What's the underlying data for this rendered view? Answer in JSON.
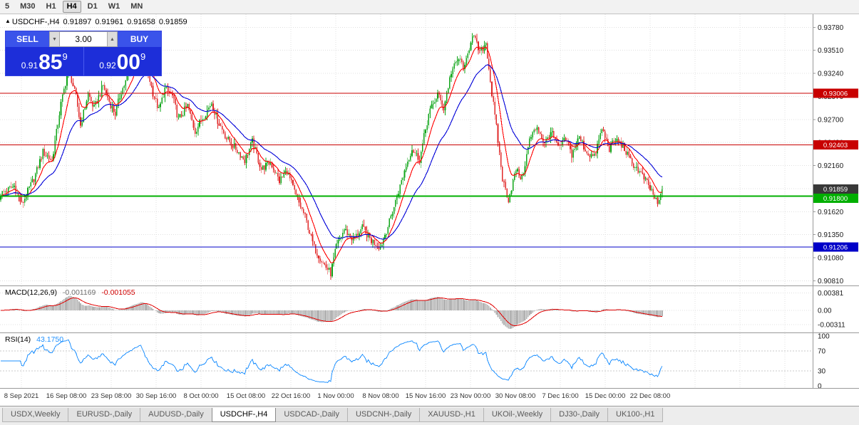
{
  "toolbar": {
    "timeframes": [
      "5",
      "M30",
      "H1",
      "H4",
      "D1",
      "W1",
      "MN"
    ],
    "active": "H4"
  },
  "chart_header": {
    "collapse_icon": "▲",
    "symbol_tf": "USDCHF-,H4",
    "open": "0.91897",
    "high": "0.91961",
    "low": "0.91658",
    "close": "0.91859"
  },
  "trade_panel": {
    "sell_label": "SELL",
    "buy_label": "BUY",
    "volume": "3.00",
    "spinner_down": "▼",
    "spinner_up": "▲",
    "sell_price": {
      "prefix": "0.91",
      "big": "85",
      "pip": "9"
    },
    "buy_price": {
      "prefix": "0.92",
      "big": "00",
      "pip": "9"
    }
  },
  "indicator_labels": {
    "macd_name": "MACD(12,26,9)",
    "macd_main": "-0.001169",
    "macd_signal": "-0.001055",
    "rsi_name": "RSI(14)",
    "rsi_value": "43.1750"
  },
  "tabs": {
    "items": [
      "USDX,Weekly",
      "EURUSD-,Daily",
      "AUDUSD-,Daily",
      "USDCHF-,H4",
      "USDCAD-,Daily",
      "USDCNH-,Daily",
      "XAUUSD-,H1",
      "UKOil-,Weekly",
      "DJ30-,Daily",
      "UK100-,H1"
    ],
    "active": "USDCHF-,H4"
  },
  "chart_data": {
    "type": "candlestick",
    "symbol": "USDCHF-",
    "timeframe": "H4",
    "ohlc_current": {
      "open": 0.91897,
      "high": 0.91961,
      "low": 0.91658,
      "close": 0.91859
    },
    "y_range": [
      0.9078,
      0.939
    ],
    "y_ticks": [
      0.9081,
      0.9108,
      0.9135,
      0.9162,
      0.9189,
      0.9216,
      0.9243,
      0.927,
      0.9297,
      0.9324,
      0.9351,
      0.9378
    ],
    "x_labels": [
      "8 Sep 2021",
      "16 Sep 08:00",
      "23 Sep 08:00",
      "30 Sep 16:00",
      "8 Oct 00:00",
      "15 Oct 08:00",
      "22 Oct 16:00",
      "1 Nov 00:00",
      "8 Nov 08:00",
      "15 Nov 16:00",
      "23 Nov 00:00",
      "30 Nov 08:00",
      "7 Dec 16:00",
      "15 Dec 00:00",
      "22 Dec 08:00"
    ],
    "candles_total": 440,
    "price_waypoints": [
      [
        0,
        0.9183
      ],
      [
        9,
        0.9192
      ],
      [
        14,
        0.917
      ],
      [
        23,
        0.9205
      ],
      [
        28,
        0.9232
      ],
      [
        34,
        0.9222
      ],
      [
        40,
        0.9288
      ],
      [
        45,
        0.933
      ],
      [
        50,
        0.9296
      ],
      [
        53,
        0.9263
      ],
      [
        58,
        0.93
      ],
      [
        62,
        0.9283
      ],
      [
        68,
        0.931
      ],
      [
        72,
        0.9291
      ],
      [
        76,
        0.9277
      ],
      [
        80,
        0.9303
      ],
      [
        85,
        0.9322
      ],
      [
        90,
        0.935
      ],
      [
        93,
        0.936
      ],
      [
        97,
        0.9331
      ],
      [
        101,
        0.9301
      ],
      [
        105,
        0.9281
      ],
      [
        109,
        0.9306
      ],
      [
        114,
        0.9297
      ],
      [
        118,
        0.927
      ],
      [
        124,
        0.9286
      ],
      [
        129,
        0.9256
      ],
      [
        134,
        0.9272
      ],
      [
        140,
        0.929
      ],
      [
        144,
        0.9269
      ],
      [
        150,
        0.9248
      ],
      [
        156,
        0.9236
      ],
      [
        162,
        0.9222
      ],
      [
        167,
        0.9244
      ],
      [
        173,
        0.9212
      ],
      [
        179,
        0.922
      ],
      [
        185,
        0.9198
      ],
      [
        190,
        0.921
      ],
      [
        196,
        0.918
      ],
      [
        202,
        0.9156
      ],
      [
        208,
        0.912
      ],
      [
        214,
        0.9102
      ],
      [
        219,
        0.909
      ],
      [
        223,
        0.9122
      ],
      [
        228,
        0.9141
      ],
      [
        234,
        0.9129
      ],
      [
        240,
        0.9143
      ],
      [
        246,
        0.9128
      ],
      [
        252,
        0.9121
      ],
      [
        258,
        0.915
      ],
      [
        264,
        0.9186
      ],
      [
        269,
        0.9216
      ],
      [
        273,
        0.9236
      ],
      [
        278,
        0.9223
      ],
      [
        284,
        0.9276
      ],
      [
        290,
        0.93
      ],
      [
        294,
        0.9283
      ],
      [
        299,
        0.9326
      ],
      [
        304,
        0.9341
      ],
      [
        308,
        0.933
      ],
      [
        313,
        0.9371
      ],
      [
        318,
        0.9348
      ],
      [
        322,
        0.936
      ],
      [
        326,
        0.93
      ],
      [
        329,
        0.926
      ],
      [
        333,
        0.92
      ],
      [
        337,
        0.9176
      ],
      [
        342,
        0.9211
      ],
      [
        346,
        0.92
      ],
      [
        351,
        0.9246
      ],
      [
        356,
        0.9262
      ],
      [
        361,
        0.9241
      ],
      [
        365,
        0.9256
      ],
      [
        370,
        0.9236
      ],
      [
        375,
        0.9246
      ],
      [
        379,
        0.9229
      ],
      [
        384,
        0.9249
      ],
      [
        389,
        0.9231
      ],
      [
        394,
        0.9226
      ],
      [
        399,
        0.9259
      ],
      [
        404,
        0.9236
      ],
      [
        408,
        0.9246
      ],
      [
        413,
        0.9239
      ],
      [
        418,
        0.9221
      ],
      [
        422,
        0.9213
      ],
      [
        427,
        0.9201
      ],
      [
        432,
        0.9186
      ],
      [
        436,
        0.917
      ],
      [
        439,
        0.9186
      ]
    ],
    "noise": {
      "close": 0.00045,
      "wick": 0.0006
    },
    "colors": {
      "bull": "#0fa518",
      "bear": "#e02828",
      "grid": "#e0e0e0",
      "axis_border": "#9a9a9a"
    },
    "moving_averages": [
      {
        "period": 10,
        "color": "#ff0000"
      },
      {
        "period": 30,
        "color": "#0000d8"
      }
    ],
    "h_lines": [
      {
        "value": 0.93006,
        "label": "0.93006",
        "color": "#c80000",
        "width": 1
      },
      {
        "value": 0.92403,
        "label": "0.92403",
        "color": "#c80000",
        "width": 1
      },
      {
        "value": 0.918,
        "label": "0.91800",
        "color": "#00af00",
        "width": 2
      },
      {
        "value": 0.91206,
        "label": "0.91206",
        "color": "#0000c8",
        "width": 1
      }
    ],
    "current_price": {
      "value": 0.91859,
      "label": "0.91859",
      "badge_color": "#383838"
    },
    "macd": {
      "fast": 12,
      "slow": 26,
      "signal": 9,
      "main_value": -0.001169,
      "signal_value": -0.001055,
      "y_range": [
        -0.0045,
        0.0048
      ],
      "y_ticks": [
        {
          "label": "0.00381",
          "value": 0.00381
        },
        {
          "label": "0.00",
          "value": 0
        },
        {
          "label": "-0.00311",
          "value": -0.00311
        }
      ],
      "histogram_color": "#b2b2b2",
      "signal_color": "#e00000"
    },
    "rsi": {
      "period": 14,
      "value": 43.175,
      "color": "#1e90ff",
      "y_range": [
        0,
        100
      ],
      "levels": [
        70,
        30
      ],
      "y_ticks": [
        {
          "label": "100",
          "value": 100
        },
        {
          "label": "70",
          "value": 70
        },
        {
          "label": "30",
          "value": 30
        },
        {
          "label": "0",
          "value": 0
        }
      ]
    }
  }
}
